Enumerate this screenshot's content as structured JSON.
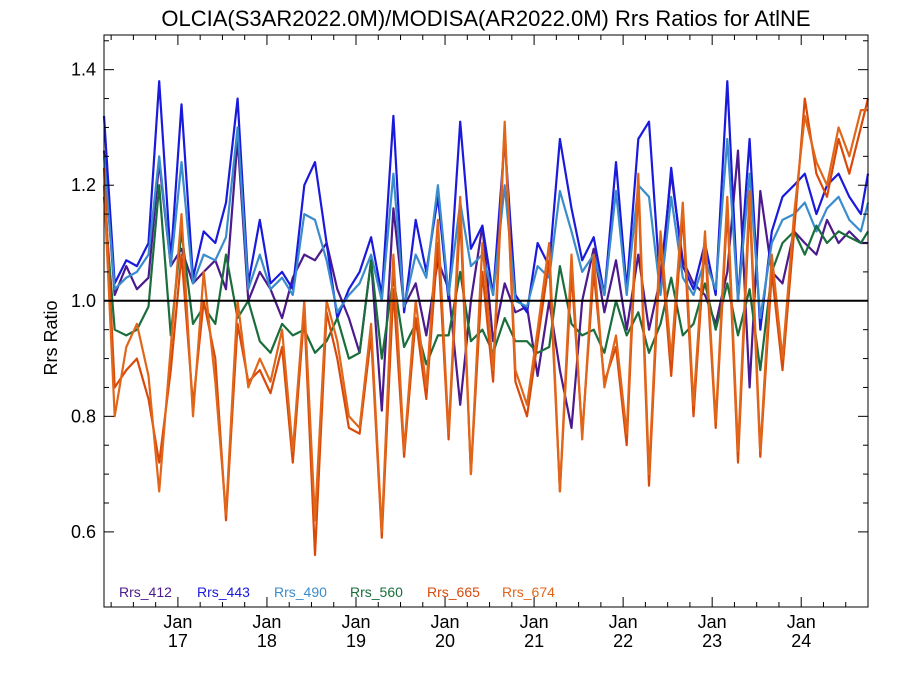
{
  "chart_data": {
    "type": "line",
    "title": "OLCIA(S3AR2022.0M)/MODISA(AR2022.0M)  Rrs Ratios for AtlNE",
    "ylabel": "Rrs Ratio",
    "xlabel": "",
    "ylim": [
      0.47,
      1.46
    ],
    "xlim": [
      2016.17,
      2024.75
    ],
    "yticks": [
      0.6,
      0.8,
      1.0,
      1.2,
      1.4
    ],
    "ytick_labels": [
      "0.6",
      "0.8",
      "1.0",
      "1.2",
      "1.4"
    ],
    "xticks": [
      {
        "top": "Jan",
        "bottom": "17",
        "value": 2017
      },
      {
        "top": "Jan",
        "bottom": "18",
        "value": 2018
      },
      {
        "top": "Jan",
        "bottom": "19",
        "value": 2019
      },
      {
        "top": "Jan",
        "bottom": "20",
        "value": 2020
      },
      {
        "top": "Jan",
        "bottom": "21",
        "value": 2021
      },
      {
        "top": "Jan",
        "bottom": "22",
        "value": 2022
      },
      {
        "top": "Jan",
        "bottom": "23",
        "value": 2023
      },
      {
        "top": "Jan",
        "bottom": "24",
        "value": 2024
      }
    ],
    "reference_line": 1.0,
    "grid": false,
    "legend_position": "bottom",
    "series": [
      {
        "name": "Rrs_412",
        "color": "#4b1a8c",
        "x": [
          2016.17,
          2016.29,
          2016.42,
          2016.54,
          2016.67,
          2016.79,
          2016.92,
          2017.04,
          2017.17,
          2017.29,
          2017.42,
          2017.54,
          2017.67,
          2017.79,
          2017.92,
          2018.04,
          2018.17,
          2018.29,
          2018.42,
          2018.54,
          2018.67,
          2018.79,
          2018.92,
          2019.04,
          2019.17,
          2019.29,
          2019.42,
          2019.54,
          2019.67,
          2019.79,
          2019.92,
          2020.04,
          2020.17,
          2020.29,
          2020.42,
          2020.54,
          2020.67,
          2020.79,
          2020.92,
          2021.04,
          2021.17,
          2021.29,
          2021.42,
          2021.54,
          2021.67,
          2021.79,
          2021.92,
          2022.04,
          2022.17,
          2022.29,
          2022.42,
          2022.54,
          2022.67,
          2022.79,
          2022.92,
          2023.04,
          2023.17,
          2023.29,
          2023.42,
          2023.54,
          2023.67,
          2023.79,
          2023.92,
          2024.04,
          2024.17,
          2024.29,
          2024.42,
          2024.54,
          2024.67,
          2024.75
        ],
        "values": [
          1.26,
          1.01,
          1.06,
          1.02,
          1.04,
          1.24,
          1.06,
          1.09,
          1.03,
          1.05,
          1.07,
          1.02,
          1.28,
          1.0,
          1.05,
          1.02,
          0.97,
          1.04,
          1.08,
          1.07,
          1.1,
          1.02,
          0.97,
          0.91,
          1.07,
          0.81,
          1.16,
          0.99,
          1.03,
          0.94,
          1.07,
          1.02,
          0.82,
          1.0,
          1.13,
          0.93,
          1.03,
          0.98,
          0.99,
          0.87,
          1.0,
          0.88,
          0.78,
          1.0,
          1.09,
          0.98,
          1.07,
          0.95,
          1.08,
          0.95,
          1.04,
          1.22,
          1.07,
          1.03,
          1.01,
          0.96,
          1.05,
          1.26,
          0.85,
          1.19,
          1.05,
          1.03,
          1.12,
          1.1,
          1.08,
          1.14,
          1.1,
          1.12,
          1.1,
          1.1
        ]
      },
      {
        "name": "Rrs_443",
        "color": "#1a1adc",
        "x": [
          2016.17,
          2016.29,
          2016.42,
          2016.54,
          2016.67,
          2016.79,
          2016.92,
          2017.04,
          2017.17,
          2017.29,
          2017.42,
          2017.54,
          2017.67,
          2017.79,
          2017.92,
          2018.04,
          2018.17,
          2018.29,
          2018.42,
          2018.54,
          2018.67,
          2018.79,
          2018.92,
          2019.04,
          2019.17,
          2019.29,
          2019.42,
          2019.54,
          2019.67,
          2019.79,
          2019.92,
          2020.04,
          2020.17,
          2020.29,
          2020.42,
          2020.54,
          2020.67,
          2020.79,
          2020.92,
          2021.04,
          2021.17,
          2021.29,
          2021.42,
          2021.54,
          2021.67,
          2021.79,
          2021.92,
          2022.04,
          2022.17,
          2022.29,
          2022.42,
          2022.54,
          2022.67,
          2022.79,
          2022.92,
          2023.04,
          2023.17,
          2023.29,
          2023.42,
          2023.54,
          2023.67,
          2023.79,
          2023.92,
          2024.04,
          2024.17,
          2024.29,
          2024.42,
          2024.54,
          2024.67,
          2024.75
        ],
        "values": [
          1.32,
          1.03,
          1.07,
          1.06,
          1.1,
          1.38,
          1.07,
          1.34,
          1.04,
          1.12,
          1.1,
          1.17,
          1.35,
          1.03,
          1.14,
          1.03,
          1.05,
          1.02,
          1.2,
          1.24,
          1.1,
          0.97,
          1.02,
          1.05,
          1.11,
          1.01,
          1.32,
          0.98,
          1.14,
          1.05,
          1.18,
          1.0,
          1.31,
          1.09,
          1.13,
          1.01,
          1.28,
          1.01,
          0.98,
          1.1,
          1.06,
          1.28,
          1.16,
          1.07,
          1.11,
          1.01,
          1.24,
          1.02,
          1.28,
          1.31,
          1.02,
          1.23,
          1.06,
          1.02,
          1.1,
          1.01,
          1.38,
          1.0,
          1.28,
          0.95,
          1.12,
          1.18,
          1.2,
          1.22,
          1.15,
          1.2,
          1.22,
          1.18,
          1.15,
          1.22
        ]
      },
      {
        "name": "Rrs_490",
        "color": "#3a8ccc",
        "x": [
          2016.17,
          2016.29,
          2016.42,
          2016.54,
          2016.67,
          2016.79,
          2016.92,
          2017.04,
          2017.17,
          2017.29,
          2017.42,
          2017.54,
          2017.67,
          2017.79,
          2017.92,
          2018.04,
          2018.17,
          2018.29,
          2018.42,
          2018.54,
          2018.67,
          2018.79,
          2018.92,
          2019.04,
          2019.17,
          2019.29,
          2019.42,
          2019.54,
          2019.67,
          2019.79,
          2019.92,
          2020.04,
          2020.17,
          2020.29,
          2020.42,
          2020.54,
          2020.67,
          2020.79,
          2020.92,
          2021.04,
          2021.17,
          2021.29,
          2021.42,
          2021.54,
          2021.67,
          2021.79,
          2021.92,
          2022.04,
          2022.17,
          2022.29,
          2022.42,
          2022.54,
          2022.67,
          2022.79,
          2022.92,
          2023.04,
          2023.17,
          2023.29,
          2023.42,
          2023.54,
          2023.67,
          2023.79,
          2023.92,
          2024.04,
          2024.17,
          2024.29,
          2024.42,
          2024.54,
          2024.67,
          2024.75
        ],
        "values": [
          1.25,
          1.02,
          1.04,
          1.05,
          1.08,
          1.25,
          1.06,
          1.24,
          1.03,
          1.08,
          1.07,
          1.11,
          1.3,
          1.02,
          1.08,
          1.02,
          1.04,
          1.01,
          1.15,
          1.14,
          1.07,
          0.98,
          1.01,
          1.03,
          1.08,
          1.0,
          1.22,
          0.99,
          1.08,
          1.04,
          1.2,
          1.01,
          1.17,
          1.06,
          1.08,
          1.01,
          1.2,
          1.0,
          0.99,
          1.06,
          1.04,
          1.19,
          1.12,
          1.05,
          1.08,
          1.01,
          1.19,
          1.01,
          1.2,
          1.18,
          1.01,
          1.18,
          1.04,
          1.01,
          1.07,
          1.02,
          1.28,
          1.0,
          1.22,
          0.97,
          1.1,
          1.14,
          1.15,
          1.17,
          1.12,
          1.16,
          1.18,
          1.14,
          1.12,
          1.17
        ]
      },
      {
        "name": "Rrs_560",
        "color": "#1a6e3c",
        "x": [
          2016.17,
          2016.29,
          2016.42,
          2016.54,
          2016.67,
          2016.79,
          2016.92,
          2017.04,
          2017.17,
          2017.29,
          2017.42,
          2017.54,
          2017.67,
          2017.79,
          2017.92,
          2018.04,
          2018.17,
          2018.29,
          2018.42,
          2018.54,
          2018.67,
          2018.79,
          2018.92,
          2019.04,
          2019.17,
          2019.29,
          2019.42,
          2019.54,
          2019.67,
          2019.79,
          2019.92,
          2020.04,
          2020.17,
          2020.29,
          2020.42,
          2020.54,
          2020.67,
          2020.79,
          2020.92,
          2021.04,
          2021.17,
          2021.29,
          2021.42,
          2021.54,
          2021.67,
          2021.79,
          2021.92,
          2022.04,
          2022.17,
          2022.29,
          2022.42,
          2022.54,
          2022.67,
          2022.79,
          2022.92,
          2023.04,
          2023.17,
          2023.29,
          2023.42,
          2023.54,
          2023.67,
          2023.79,
          2023.92,
          2024.04,
          2024.17,
          2024.29,
          2024.42,
          2024.54,
          2024.67,
          2024.75
        ],
        "values": [
          1.18,
          0.95,
          0.94,
          0.95,
          0.99,
          1.2,
          0.94,
          1.12,
          0.96,
          0.99,
          0.96,
          1.08,
          0.97,
          1.0,
          0.93,
          0.91,
          0.96,
          0.94,
          0.95,
          0.91,
          0.93,
          0.97,
          0.9,
          0.91,
          1.07,
          0.9,
          1.04,
          0.92,
          0.96,
          0.89,
          0.94,
          0.94,
          1.05,
          0.93,
          0.95,
          0.91,
          0.97,
          0.93,
          0.93,
          0.91,
          0.92,
          1.06,
          0.96,
          0.94,
          0.95,
          0.91,
          1.0,
          0.94,
          0.98,
          0.91,
          0.96,
          1.04,
          0.94,
          0.96,
          1.03,
          0.95,
          1.03,
          0.94,
          1.02,
          0.88,
          1.05,
          1.1,
          1.12,
          1.08,
          1.13,
          1.1,
          1.12,
          1.11,
          1.1,
          1.12
        ]
      },
      {
        "name": "Rrs_665",
        "color": "#d94a0a",
        "x": [
          2016.17,
          2016.29,
          2016.42,
          2016.54,
          2016.67,
          2016.79,
          2016.92,
          2017.04,
          2017.17,
          2017.29,
          2017.42,
          2017.54,
          2017.67,
          2017.79,
          2017.92,
          2018.04,
          2018.17,
          2018.29,
          2018.42,
          2018.54,
          2018.67,
          2018.79,
          2018.92,
          2019.04,
          2019.17,
          2019.29,
          2019.42,
          2019.54,
          2019.67,
          2019.79,
          2019.92,
          2020.04,
          2020.17,
          2020.29,
          2020.42,
          2020.54,
          2020.67,
          2020.79,
          2020.92,
          2021.04,
          2021.17,
          2021.29,
          2021.42,
          2021.54,
          2021.67,
          2021.79,
          2021.92,
          2022.04,
          2022.17,
          2022.29,
          2022.42,
          2022.54,
          2022.67,
          2022.79,
          2022.92,
          2023.04,
          2023.17,
          2023.29,
          2023.42,
          2023.54,
          2023.67,
          2023.79,
          2023.92,
          2024.04,
          2024.17,
          2024.29,
          2024.42,
          2024.54,
          2024.67,
          2024.75
        ],
        "values": [
          1.23,
          0.85,
          0.88,
          0.9,
          0.83,
          0.72,
          0.88,
          1.08,
          0.82,
          1.0,
          0.9,
          0.62,
          0.96,
          0.86,
          0.88,
          0.84,
          0.92,
          0.72,
          0.98,
          0.56,
          0.98,
          0.9,
          0.78,
          0.77,
          0.94,
          0.59,
          1.02,
          0.73,
          0.97,
          0.83,
          1.1,
          0.76,
          1.15,
          0.7,
          1.05,
          0.86,
          1.3,
          0.86,
          0.8,
          0.93,
          1.07,
          0.67,
          1.05,
          0.77,
          1.05,
          0.86,
          0.92,
          0.75,
          1.2,
          0.68,
          1.1,
          0.87,
          1.15,
          0.8,
          1.1,
          0.78,
          1.16,
          0.72,
          1.17,
          0.73,
          1.05,
          0.88,
          1.12,
          1.35,
          1.22,
          1.18,
          1.28,
          1.22,
          1.3,
          1.35
        ]
      },
      {
        "name": "Rrs_674",
        "color": "#e0661a",
        "x": [
          2016.17,
          2016.29,
          2016.42,
          2016.54,
          2016.67,
          2016.79,
          2016.92,
          2017.04,
          2017.17,
          2017.29,
          2017.42,
          2017.54,
          2017.67,
          2017.79,
          2017.92,
          2018.04,
          2018.17,
          2018.29,
          2018.42,
          2018.54,
          2018.67,
          2018.79,
          2018.92,
          2019.04,
          2019.17,
          2019.29,
          2019.42,
          2019.54,
          2019.67,
          2019.79,
          2019.92,
          2020.04,
          2020.17,
          2020.29,
          2020.42,
          2020.54,
          2020.67,
          2020.79,
          2020.92,
          2021.04,
          2021.17,
          2021.29,
          2021.42,
          2021.54,
          2021.67,
          2021.79,
          2021.92,
          2022.04,
          2022.17,
          2022.29,
          2022.42,
          2022.54,
          2022.67,
          2022.79,
          2022.92,
          2023.04,
          2023.17,
          2023.29,
          2023.42,
          2023.54,
          2023.67,
          2023.79,
          2023.92,
          2024.04,
          2024.17,
          2024.29,
          2024.42,
          2024.54,
          2024.67,
          2024.75
        ],
        "values": [
          1.2,
          0.8,
          0.92,
          0.96,
          0.87,
          0.67,
          0.92,
          1.15,
          0.8,
          1.05,
          0.86,
          0.63,
          1.0,
          0.85,
          0.9,
          0.86,
          0.95,
          0.74,
          1.0,
          0.62,
          1.0,
          0.93,
          0.8,
          0.78,
          0.96,
          0.6,
          1.08,
          0.74,
          1.0,
          0.85,
          1.14,
          0.77,
          1.18,
          0.7,
          1.1,
          0.88,
          1.31,
          0.88,
          0.82,
          0.95,
          1.1,
          0.67,
          1.08,
          0.76,
          1.08,
          0.85,
          0.94,
          0.77,
          1.22,
          0.7,
          1.12,
          0.9,
          1.17,
          0.82,
          1.12,
          0.79,
          1.18,
          0.74,
          1.19,
          0.74,
          1.08,
          0.9,
          1.15,
          1.32,
          1.24,
          1.2,
          1.3,
          1.25,
          1.33,
          1.33
        ]
      }
    ]
  }
}
